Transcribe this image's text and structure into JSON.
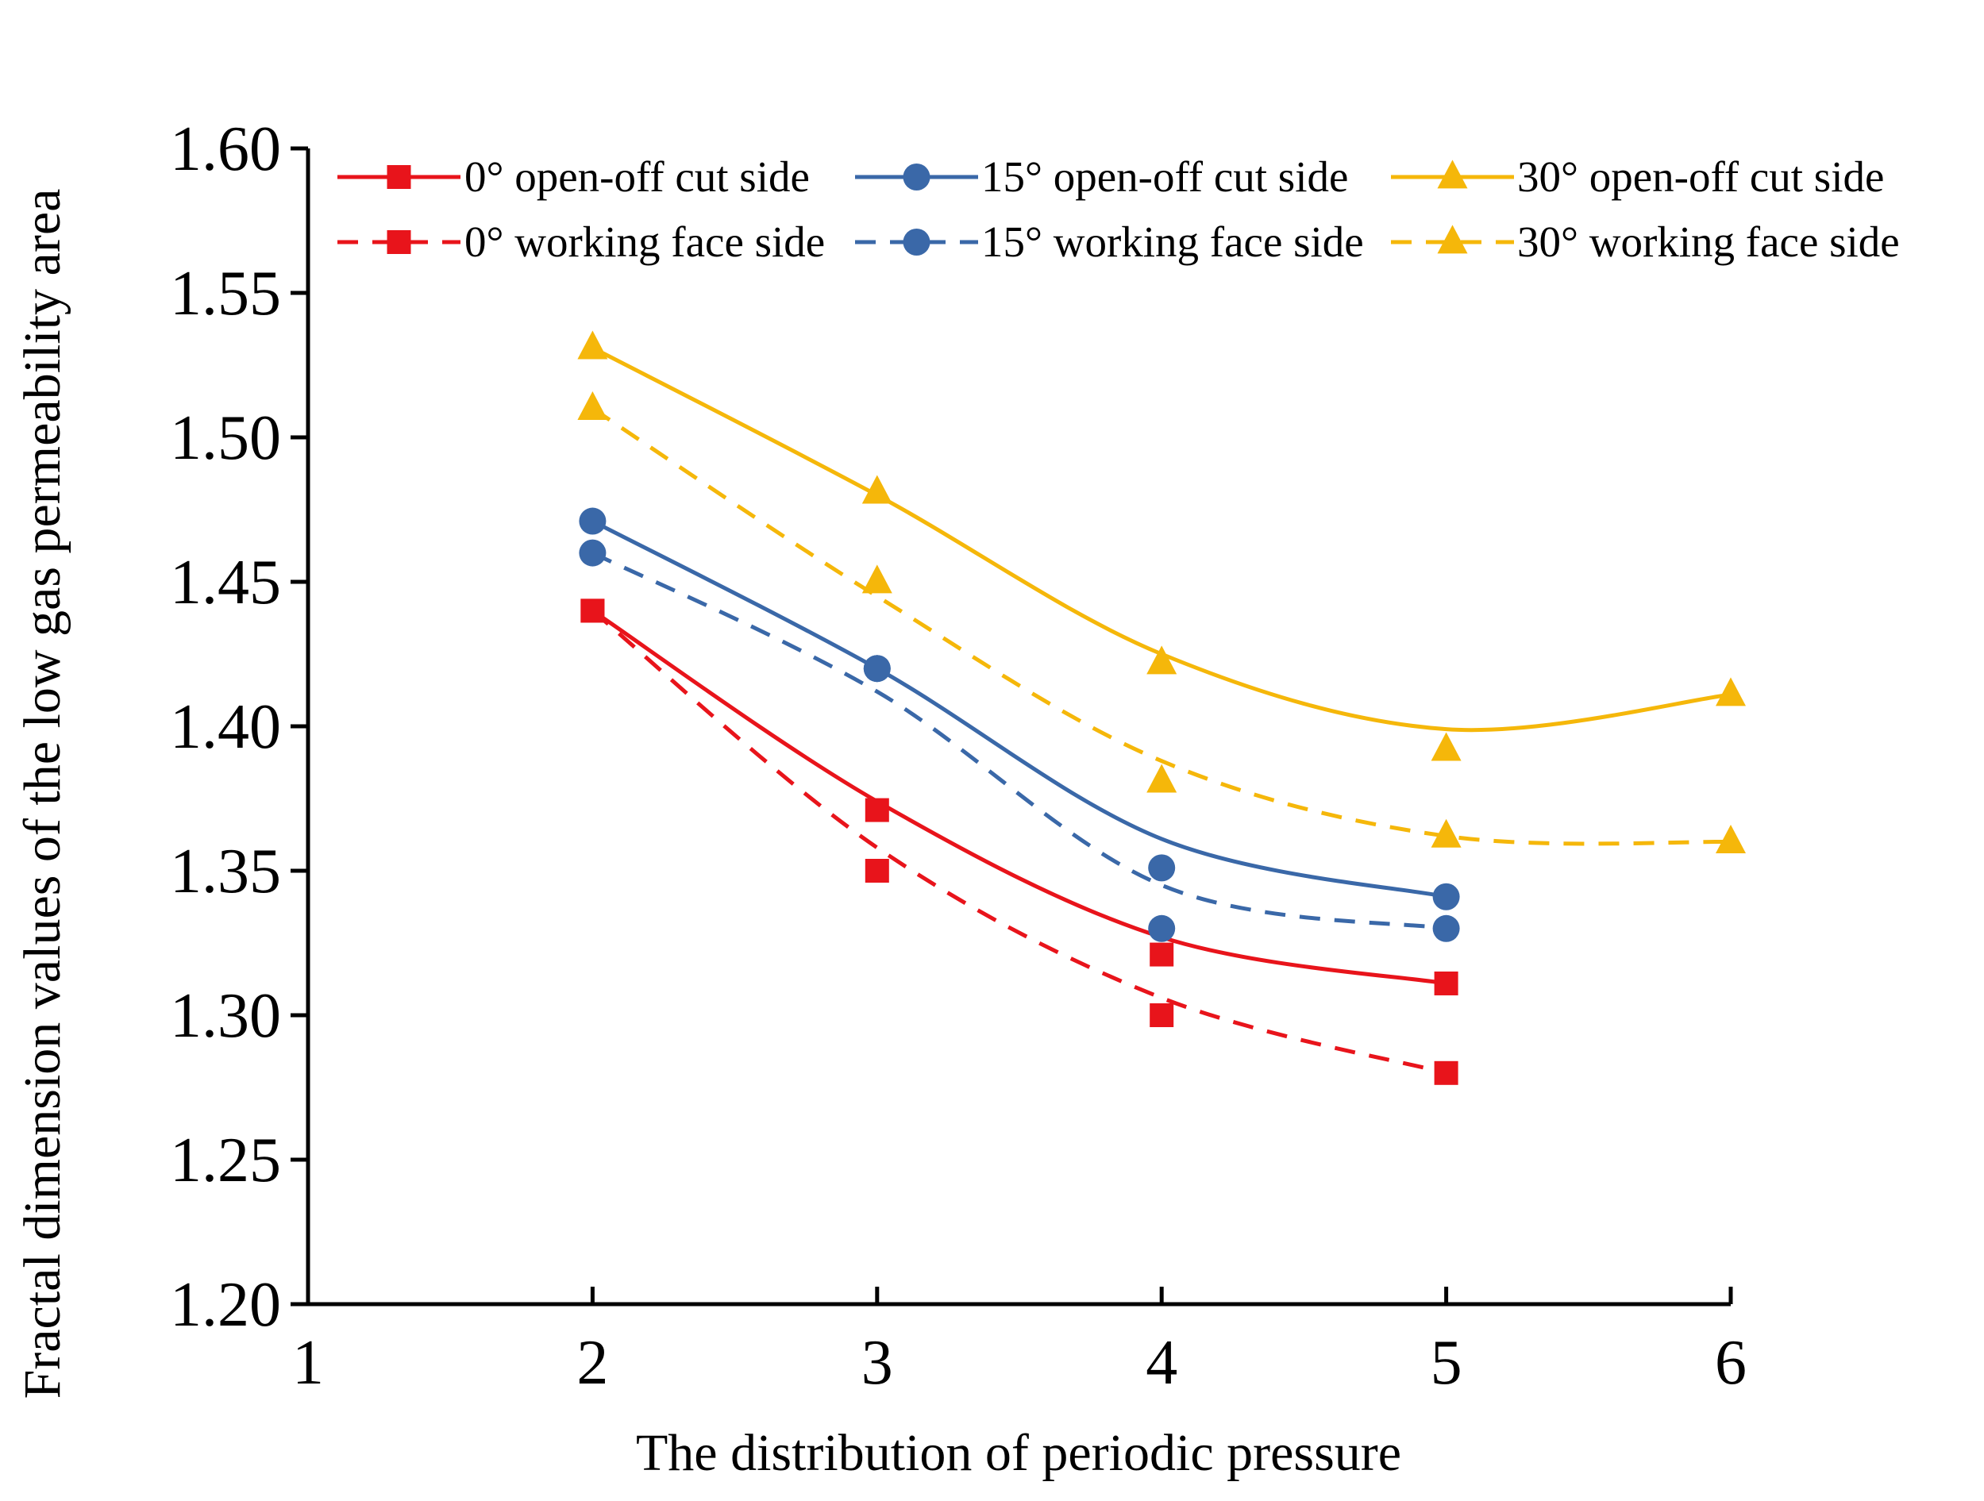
{
  "chart_data": {
    "type": "line",
    "title": "",
    "xlabel": "The distribution of periodic pressure",
    "ylabel": "Fractal dimension values of the low gas permeability area",
    "xlim": [
      1,
      6
    ],
    "ylim": [
      1.2,
      1.6
    ],
    "xticks": [
      "1",
      "2",
      "3",
      "4",
      "5",
      "6"
    ],
    "yticks": [
      "1.20",
      "1.25",
      "1.30",
      "1.35",
      "1.40",
      "1.45",
      "1.50",
      "1.55",
      "1.60"
    ],
    "legend_position": "top",
    "series": [
      {
        "name": "0° open-off cut side",
        "color": "#e8141b",
        "style": "solid",
        "marker": "square",
        "x": [
          2,
          3,
          4,
          5
        ],
        "values": [
          1.44,
          1.371,
          1.321,
          1.311
        ],
        "curve": [
          1.44,
          1.374,
          1.327,
          1.311
        ]
      },
      {
        "name": "15° open-off cut side",
        "color": "#3a68a8",
        "style": "solid",
        "marker": "circle",
        "x": [
          2,
          3,
          4,
          5
        ],
        "values": [
          1.471,
          1.42,
          1.351,
          1.341
        ],
        "curve": [
          1.471,
          1.42,
          1.361,
          1.341
        ]
      },
      {
        "name": "30° open-off cut side",
        "color": "#f5b70a",
        "style": "solid",
        "marker": "triangle",
        "x": [
          2,
          3,
          4,
          5,
          6
        ],
        "values": [
          1.531,
          1.481,
          1.422,
          1.392,
          1.411
        ],
        "curve": [
          1.531,
          1.48,
          1.425,
          1.399,
          1.411
        ]
      },
      {
        "name": "0° working face side",
        "color": "#e8141b",
        "style": "dashed",
        "marker": "square",
        "x": [
          2,
          3,
          4,
          5
        ],
        "values": [
          1.44,
          1.35,
          1.3,
          1.28
        ],
        "curve": [
          1.44,
          1.358,
          1.306,
          1.28
        ]
      },
      {
        "name": "15° working face side",
        "color": "#3a68a8",
        "style": "dashed",
        "marker": "circle",
        "x": [
          2,
          3,
          4,
          5
        ],
        "values": [
          1.46,
          1.42,
          1.33,
          1.33
        ],
        "curve": [
          1.46,
          1.412,
          1.345,
          1.33
        ]
      },
      {
        "name": "30° working face side",
        "color": "#f5b70a",
        "style": "dashed",
        "marker": "triangle",
        "x": [
          2,
          3,
          4,
          5,
          6
        ],
        "values": [
          1.51,
          1.45,
          1.381,
          1.362,
          1.36
        ],
        "curve": [
          1.51,
          1.445,
          1.388,
          1.362,
          1.36
        ]
      }
    ]
  }
}
